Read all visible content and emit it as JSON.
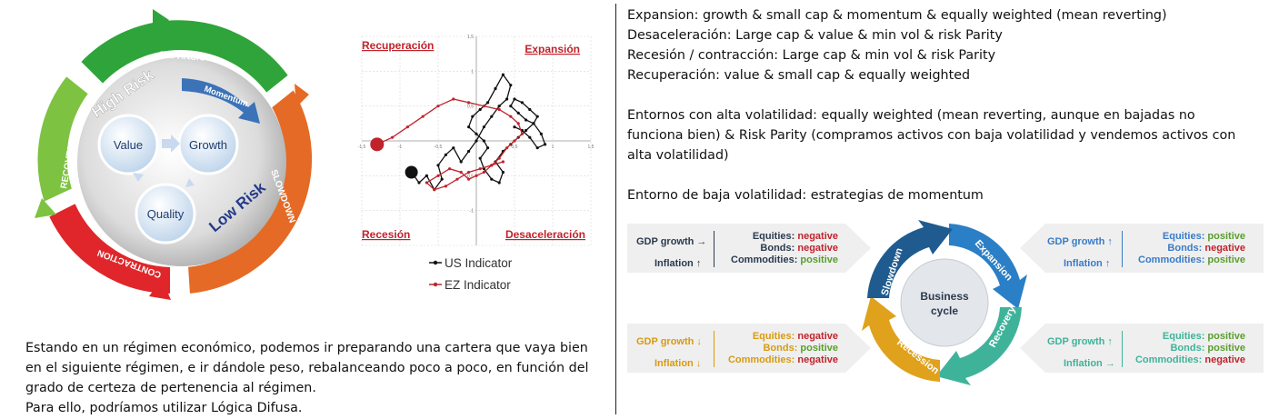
{
  "cycle_wheel": {
    "segments": [
      "EXPANSION",
      "SLOWDOWN",
      "CONTRACTION",
      "RECOVERY"
    ],
    "high_risk": "High Risk",
    "low_risk": "Low Risk",
    "momentum": "Momentum",
    "factors": [
      "Value",
      "Growth",
      "Quality"
    ],
    "colors": {
      "expansion": "#2fa43a",
      "slowdown": "#e56a25",
      "contraction": "#e0262a",
      "recovery": "#7ec242"
    }
  },
  "indicator_chart": {
    "quadrants": {
      "top_left": "Recuperación",
      "top_right": "Expansión",
      "bottom_left": "Recesión",
      "bottom_right": "Desaceleración"
    },
    "legend": [
      "US Indicator",
      "EZ Indicator"
    ],
    "ticks": {
      "y": [
        "1,5",
        "1",
        "0,5",
        "-0,5",
        "-1"
      ],
      "x": [
        "-1,5",
        "-1",
        "-0,5",
        "0,5",
        "1",
        "1,5"
      ]
    }
  },
  "chart_data": {
    "type": "line",
    "xlim": [
      -1.5,
      1.5
    ],
    "ylim": [
      -1.5,
      1.5
    ],
    "grid": true,
    "series": [
      {
        "name": "US Indicator",
        "color": "#111111",
        "x": [
          -0.85,
          -0.75,
          -0.65,
          -0.55,
          -0.45,
          -0.5,
          -0.4,
          -0.3,
          -0.2,
          -0.1,
          0.0,
          0.1,
          0.2,
          0.3,
          0.4,
          0.45,
          0.35,
          0.25,
          0.15,
          0.05,
          -0.05,
          -0.1,
          0.0,
          0.1,
          0.15,
          0.05,
          0.1,
          0.2,
          0.3,
          0.35,
          0.25,
          0.35,
          0.45,
          0.55,
          0.65,
          0.75,
          0.8,
          0.7,
          0.6,
          0.5,
          0.45,
          0.55,
          0.65,
          0.75,
          0.85,
          0.9,
          0.8,
          0.7,
          0.6,
          0.5
        ],
        "y": [
          -0.45,
          -0.6,
          -0.5,
          -0.7,
          -0.55,
          -0.35,
          -0.2,
          -0.1,
          -0.3,
          -0.15,
          0.0,
          0.2,
          0.35,
          0.5,
          0.6,
          0.8,
          0.95,
          0.75,
          0.55,
          0.45,
          0.35,
          0.2,
          0.1,
          0.0,
          -0.1,
          -0.25,
          -0.4,
          -0.55,
          -0.6,
          -0.45,
          -0.3,
          -0.15,
          -0.05,
          0.05,
          0.15,
          0.25,
          0.35,
          0.45,
          0.55,
          0.6,
          0.5,
          0.4,
          0.3,
          0.25,
          0.1,
          -0.05,
          -0.1,
          0.05,
          0.15,
          0.2
        ]
      },
      {
        "name": "EZ Indicator",
        "color": "#c0232b",
        "x": [
          -1.3,
          -1.1,
          -0.9,
          -0.7,
          -0.5,
          -0.3,
          -0.1,
          0.1,
          0.3,
          0.45,
          0.55,
          0.6,
          0.5,
          0.4,
          0.3,
          0.2,
          0.1,
          0.0,
          -0.1,
          -0.2,
          -0.35,
          -0.5,
          -0.65,
          -0.55,
          -0.4,
          -0.25,
          -0.1,
          0.05,
          0.2,
          0.35
        ],
        "y": [
          -0.05,
          0.05,
          0.2,
          0.35,
          0.5,
          0.6,
          0.55,
          0.5,
          0.45,
          0.35,
          0.25,
          0.1,
          0.0,
          -0.1,
          -0.25,
          -0.35,
          -0.45,
          -0.5,
          -0.55,
          -0.45,
          -0.4,
          -0.5,
          -0.6,
          -0.7,
          -0.65,
          -0.55,
          -0.45,
          -0.4,
          -0.35,
          -0.3
        ]
      }
    ]
  },
  "bottom_left_text": [
    "Estando en un régimen económico, podemos ir preparando una cartera que vaya bien",
    "en el siguiente régimen, e ir dándole peso, rebalanceando poco a poco, en función del",
    "grado de certeza de pertenencia al régimen.",
    "Para ello, podríamos utilizar Lógica Difusa."
  ],
  "right_text": {
    "regimes": [
      "Expansion: growth & small cap & momentum & equally weighted (mean reverting)",
      "Desaceleración: Large cap & value & min vol & risk Parity",
      "Recesión / contracción: Large cap & min vol & risk Parity",
      "Recuperación: value & small cap & equally weighted"
    ],
    "high_vol": [
      "Entornos con alta volatilidad: equally weighted (mean reverting, aunque en bajadas no",
      "funciona bien) & Risk Parity (compramos activos con baja volatilidad y vendemos activos con",
      "alta volatilidad)"
    ],
    "low_vol": "Entorno de baja volatilidad: estrategias de momentum"
  },
  "business_cycle": {
    "center": [
      "Business",
      "cycle"
    ],
    "phases": [
      "Expansion",
      "Recovery",
      "Recession",
      "Slowdown"
    ],
    "boxes": [
      {
        "gdp": "GDP growth →",
        "inflation": "Inflation ↑",
        "equities": "negative",
        "bonds": "negative",
        "commodities": "positive"
      },
      {
        "gdp": "GDP growth ↑",
        "inflation": "Inflation ↑",
        "equities": "positive",
        "bonds": "negative",
        "commodities": "positive"
      },
      {
        "gdp": "GDP growth ↓",
        "inflation": "Inflation ↓",
        "equities": "negative",
        "bonds": "positive",
        "commodities": "negative"
      },
      {
        "gdp": "GDP growth ↑",
        "inflation": "Inflation →",
        "equities": "positive",
        "bonds": "positive",
        "commodities": "negative"
      }
    ],
    "labels": {
      "equities": "Equities: ",
      "bonds": "Bonds: ",
      "commodities": "Commodities: "
    }
  }
}
